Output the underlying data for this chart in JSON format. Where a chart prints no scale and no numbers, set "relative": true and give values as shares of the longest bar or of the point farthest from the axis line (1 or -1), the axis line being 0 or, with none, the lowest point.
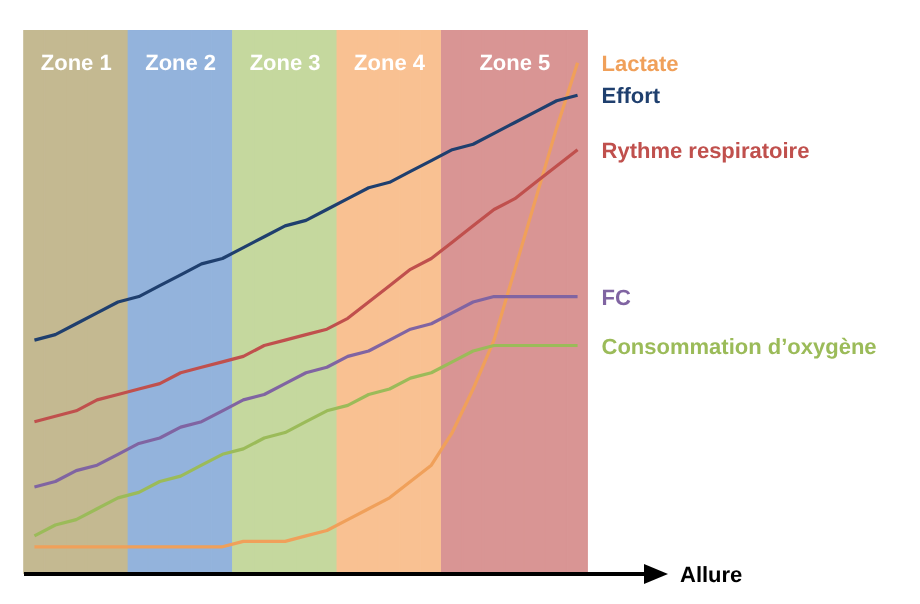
{
  "chart_data": {
    "type": "line",
    "xlabel": "Allure",
    "relative": true,
    "categories": [
      null,
      null,
      "Zone 1",
      null,
      null,
      null,
      null,
      "Zone 2",
      null,
      null,
      null,
      null,
      "Zone 3",
      null,
      null,
      null,
      null,
      "Zone 4",
      null,
      null,
      null,
      null,
      null,
      "Zone 5",
      null,
      null,
      null
    ],
    "series": [
      {
        "type": "bar",
        "values": [
          1,
          1,
          1,
          1,
          1,
          1,
          1,
          1,
          1,
          1,
          1,
          1,
          1,
          1,
          1,
          1,
          1,
          1,
          1,
          1,
          1,
          1,
          1,
          1,
          1,
          1,
          1
        ],
        "colors": [
          "#c4b991",
          "#c4b991",
          "#c4b991",
          "#c4b991",
          "#c4b991",
          "#93b3dc",
          "#93b3dc",
          "#93b3dc",
          "#93b3dc",
          "#93b3dc",
          "#c5d89e",
          "#c5d89e",
          "#c5d89e",
          "#c5d89e",
          "#c5d89e",
          "#f9c192",
          "#f9c192",
          "#f9c192",
          "#f9c192",
          "#f9c192",
          "#d99594",
          "#d99594",
          "#d99594",
          "#d99594",
          "#d99594",
          "#d99594",
          "#d99594"
        ]
      },
      {
        "name": "Lactate",
        "color": "#f0a05a",
        "values": [
          0.05,
          0.05,
          0.05,
          0.05,
          0.05,
          0.05,
          0.05,
          0.05,
          0.05,
          0.05,
          0.06,
          0.06,
          0.06,
          0.07,
          0.08,
          0.1,
          0.12,
          0.14,
          0.17,
          0.2,
          0.26,
          0.34,
          0.43,
          0.56,
          0.69,
          0.82,
          0.94
        ]
      },
      {
        "name": "Effort",
        "color": "#1f3f6e",
        "values": [
          0.43,
          0.44,
          0.46,
          0.48,
          0.5,
          0.51,
          0.53,
          0.55,
          0.57,
          0.58,
          0.6,
          0.62,
          0.64,
          0.65,
          0.67,
          0.69,
          0.71,
          0.72,
          0.74,
          0.76,
          0.78,
          0.79,
          0.81,
          0.83,
          0.85,
          0.87,
          0.88
        ]
      },
      {
        "name": "Rythme respiratoire",
        "color": "#c0504d",
        "values": [
          0.28,
          0.29,
          0.3,
          0.32,
          0.33,
          0.34,
          0.35,
          0.37,
          0.38,
          0.39,
          0.4,
          0.42,
          0.43,
          0.44,
          0.45,
          0.47,
          0.5,
          0.53,
          0.56,
          0.58,
          0.61,
          0.64,
          0.67,
          0.69,
          0.72,
          0.75,
          0.78
        ]
      },
      {
        "name": "FC",
        "color": "#8064a2",
        "values": [
          0.16,
          0.17,
          0.19,
          0.2,
          0.22,
          0.24,
          0.25,
          0.27,
          0.28,
          0.3,
          0.32,
          0.33,
          0.35,
          0.37,
          0.38,
          0.4,
          0.41,
          0.43,
          0.45,
          0.46,
          0.48,
          0.5,
          0.51,
          0.51,
          0.51,
          0.51,
          0.51
        ]
      },
      {
        "name": "Consommation d’oxygène",
        "color": "#9bbb59",
        "values": [
          0.07,
          0.09,
          0.1,
          0.12,
          0.14,
          0.15,
          0.17,
          0.18,
          0.2,
          0.22,
          0.23,
          0.25,
          0.26,
          0.28,
          0.3,
          0.31,
          0.33,
          0.34,
          0.36,
          0.37,
          0.39,
          0.41,
          0.42,
          0.42,
          0.42,
          0.42,
          0.42
        ]
      }
    ]
  }
}
